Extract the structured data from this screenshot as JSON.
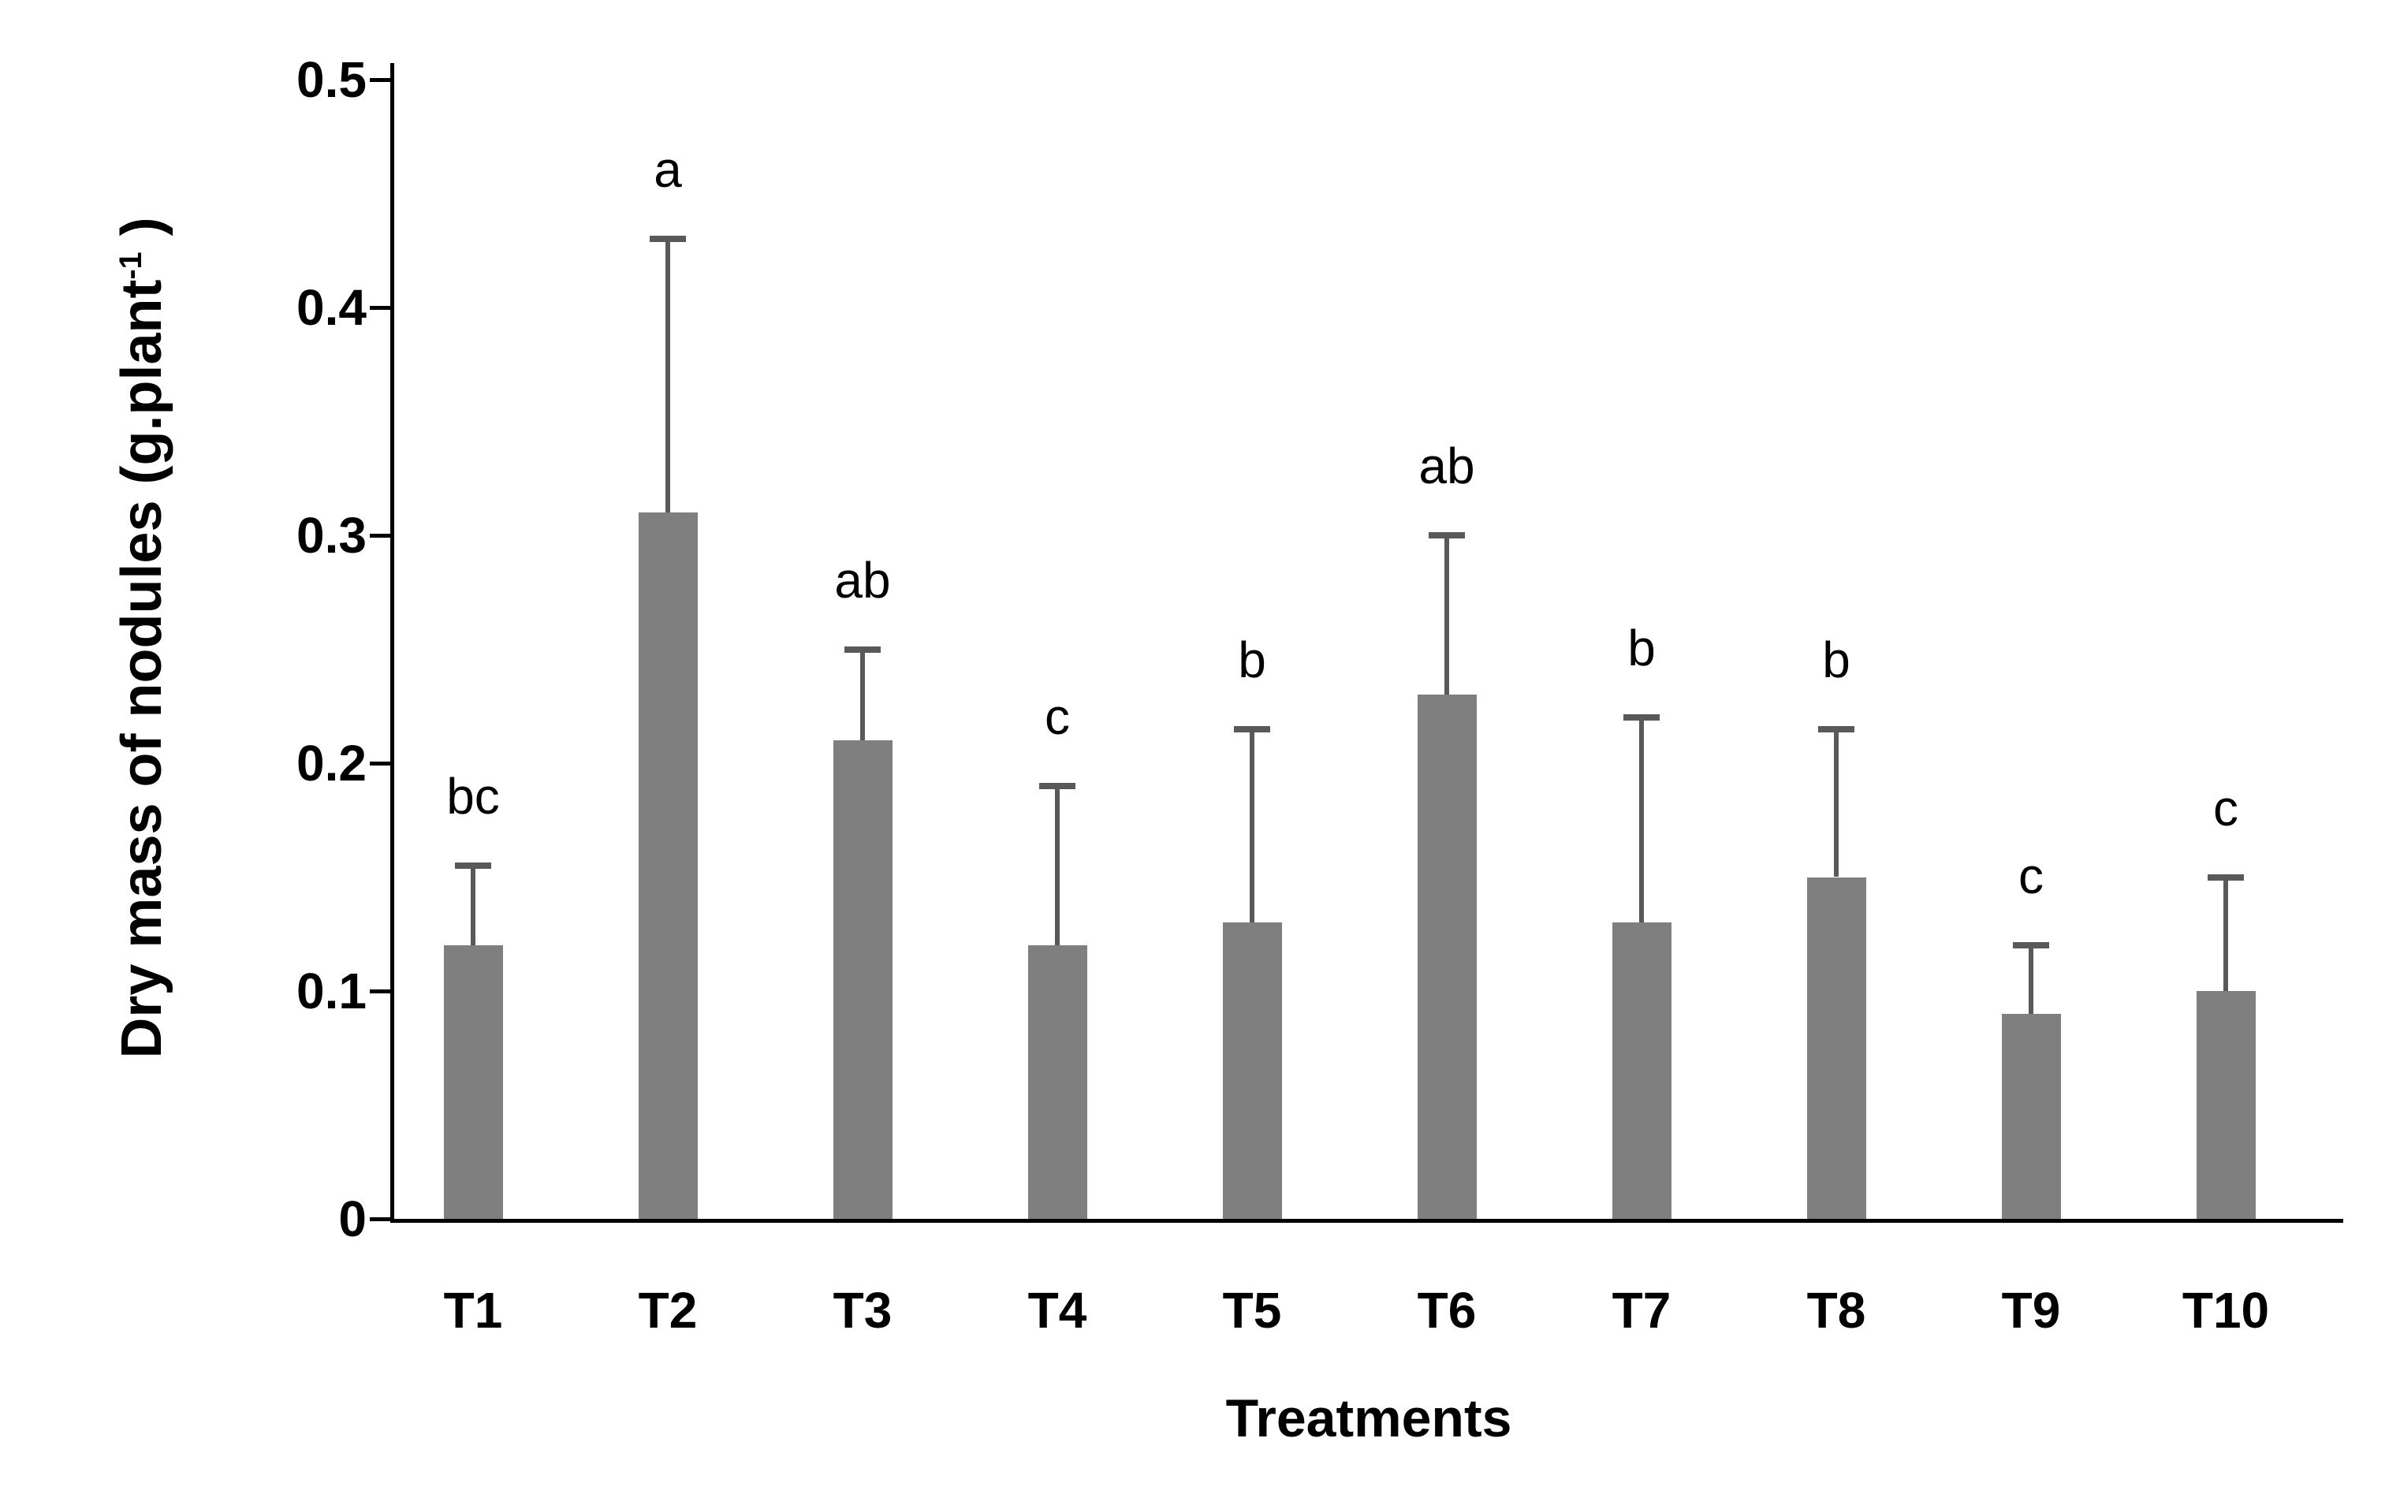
{
  "chart_data": {
    "type": "bar",
    "title": "",
    "xlabel": "Treatments",
    "ylabel_prefix": "Dry mass of nodules (g.plant",
    "ylabel_superscript": "-1",
    "ylabel_suffix": " )",
    "categories": [
      "T1",
      "T2",
      "T3",
      "T4",
      "T5",
      "T6",
      "T7",
      "T8",
      "T9",
      "T10"
    ],
    "values": [
      0.12,
      0.31,
      0.21,
      0.12,
      0.13,
      0.23,
      0.13,
      0.15,
      0.09,
      0.1
    ],
    "error_plus": [
      0.035,
      0.12,
      0.04,
      0.07,
      0.085,
      0.07,
      0.09,
      0.065,
      0.03,
      0.05
    ],
    "sig_letters": [
      "bc",
      "a",
      "ab",
      "c",
      "b",
      "ab",
      "b",
      "b",
      "c",
      "c"
    ],
    "ylim": [
      0,
      0.5
    ],
    "yticks": [
      0,
      0.1,
      0.2,
      0.3,
      0.4,
      0.5
    ],
    "ytick_labels": [
      "0",
      "0.1",
      "0.2",
      "0.3",
      "0.4",
      "0.5"
    ],
    "grid": false,
    "legend": "none",
    "bar_color": "#7f7f7f",
    "error_color": "#595959",
    "axis_color": "#000000",
    "text_color": "#000000",
    "background_color": "#ffffff"
  }
}
